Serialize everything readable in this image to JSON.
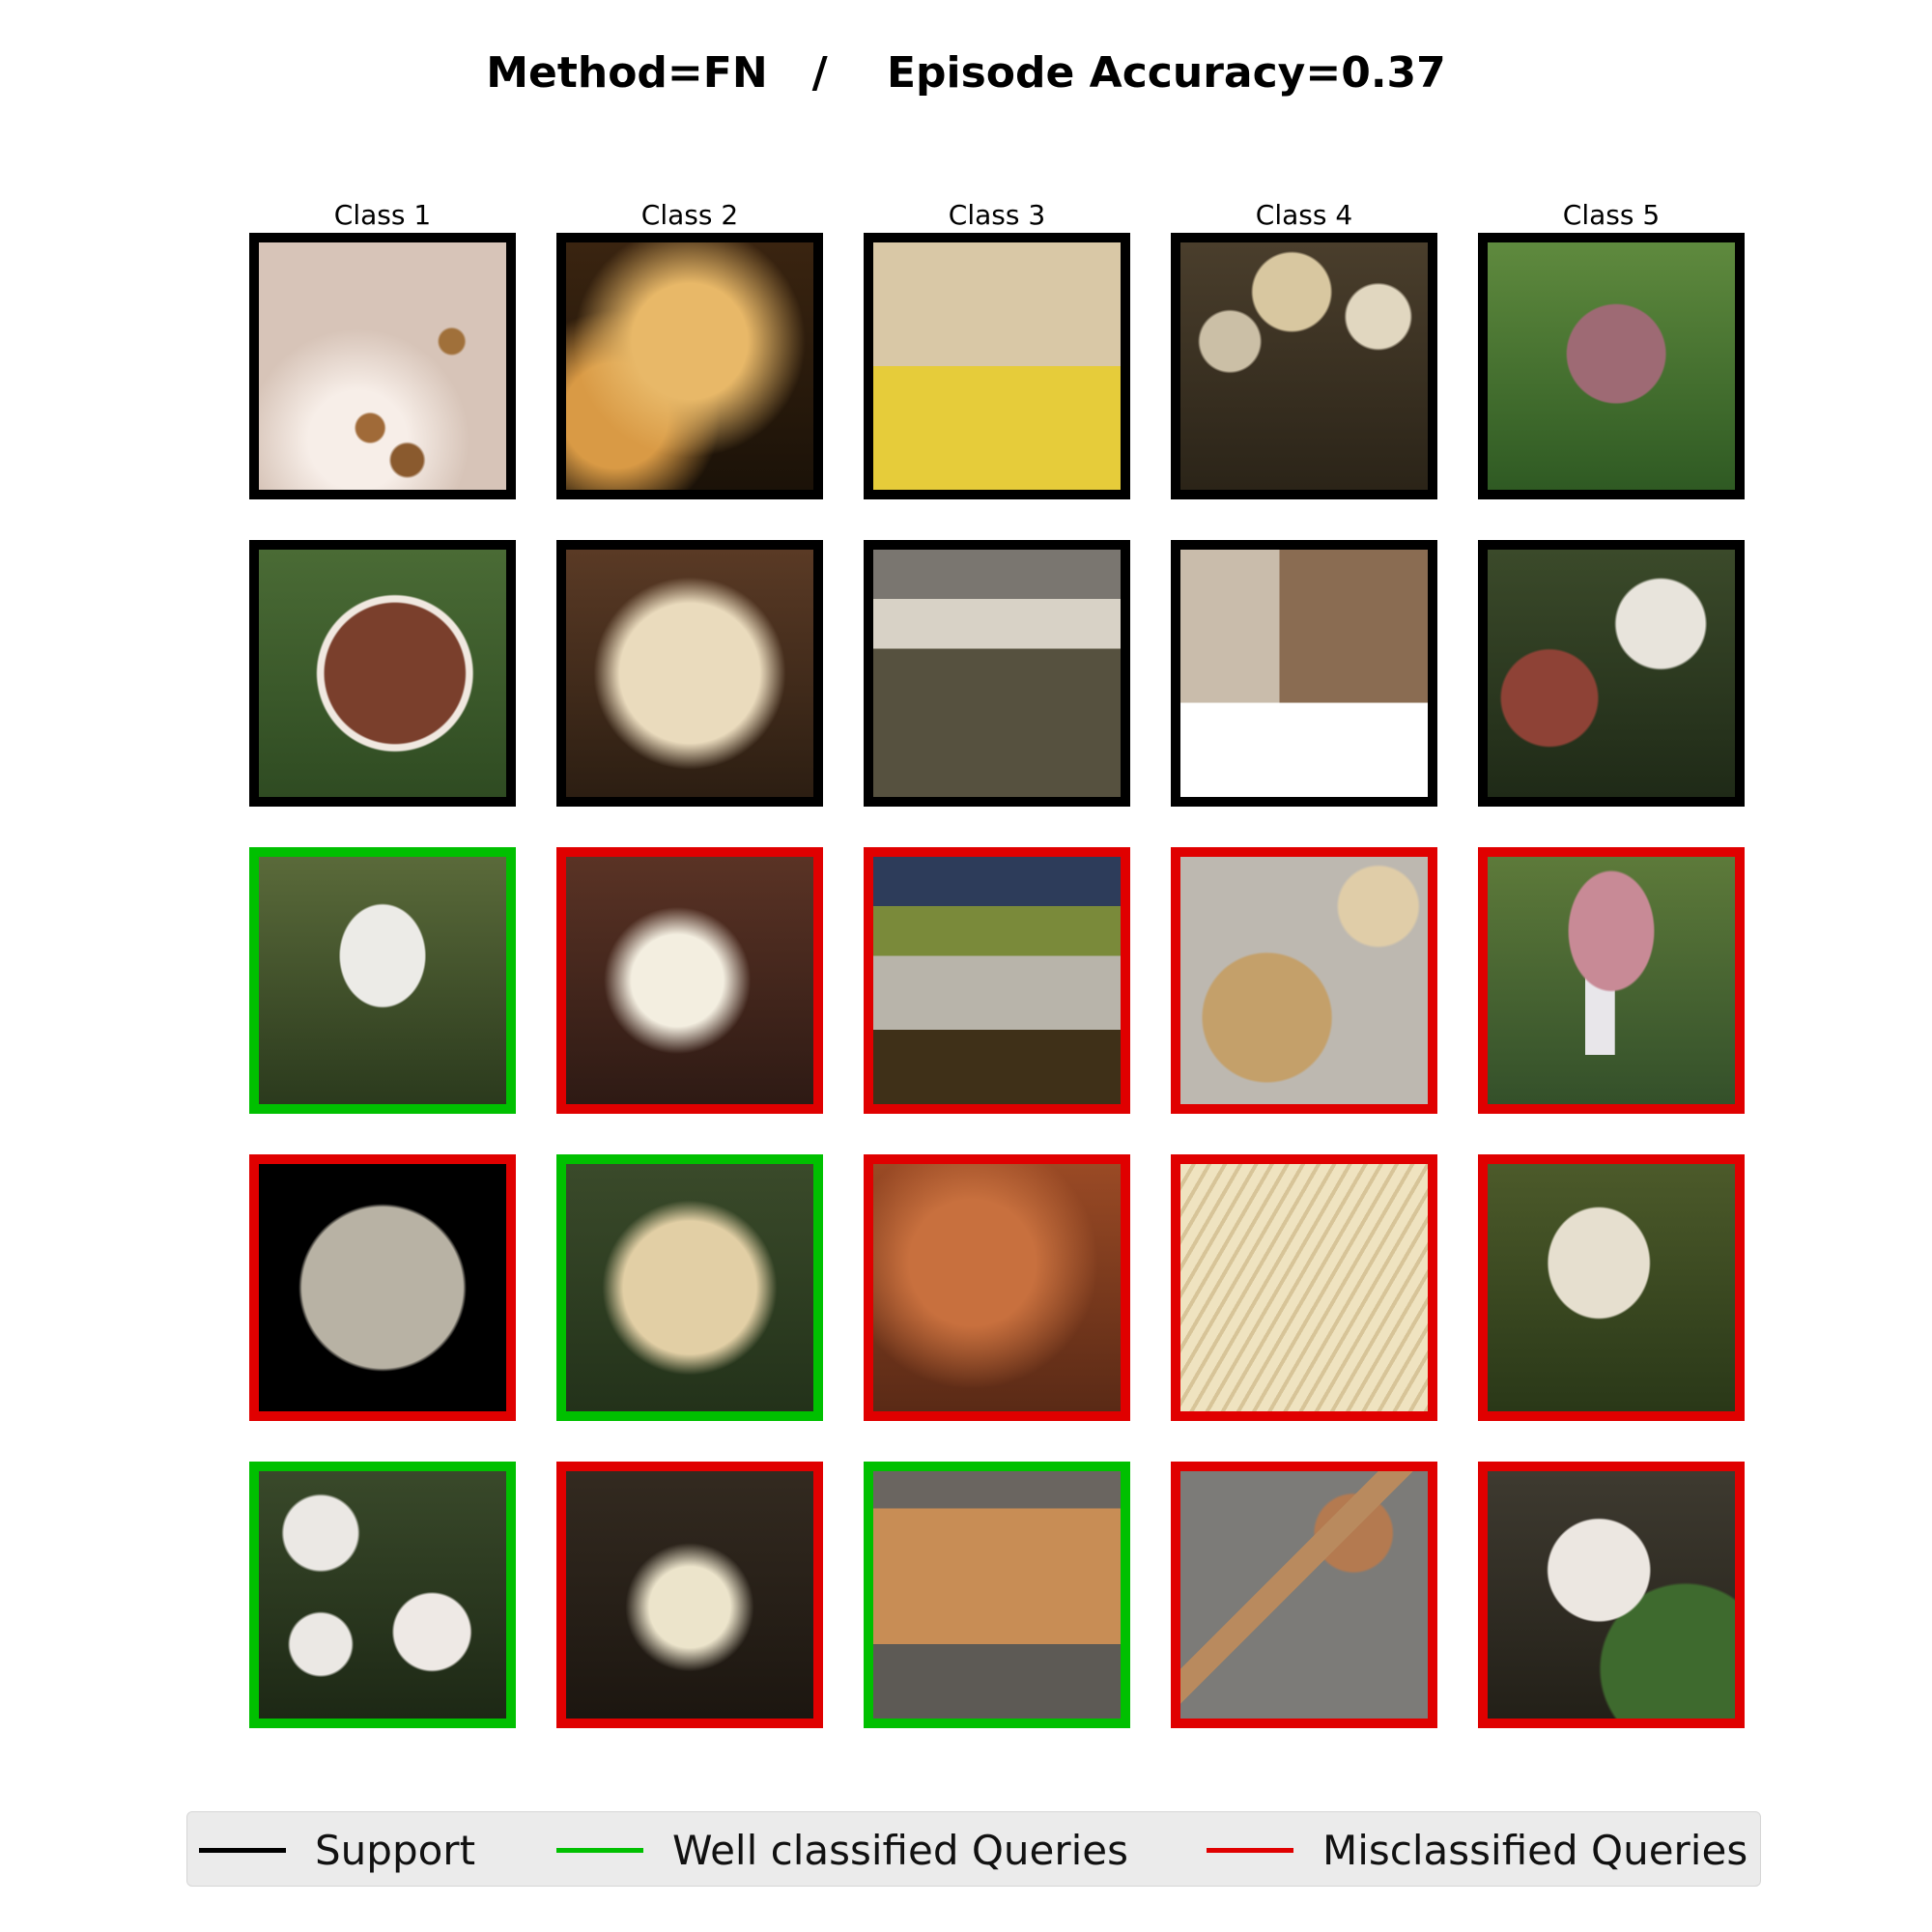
{
  "title": "Method=FN   /    Episode Accuracy=0.37",
  "columns": [
    "Class 1",
    "Class 2",
    "Class 3",
    "Class 4",
    "Class 5"
  ],
  "colors": {
    "support": "#000000",
    "well_classified": "#00c000",
    "misclassified": "#e00000"
  },
  "grid": [
    [
      "support",
      "support",
      "support",
      "support",
      "support"
    ],
    [
      "support",
      "support",
      "support",
      "support",
      "support"
    ],
    [
      "well_classified",
      "misclassified",
      "misclassified",
      "misclassified",
      "misclassified"
    ],
    [
      "misclassified",
      "well_classified",
      "misclassified",
      "misclassified",
      "misclassified"
    ],
    [
      "well_classified",
      "misclassified",
      "well_classified",
      "misclassified",
      "misclassified"
    ]
  ],
  "images": [
    [
      "microscope-spores",
      "orange-coral-fungus",
      "bracket-fungus-with-ruler",
      "group-of-mushrooms",
      "red-cap-mushroom"
    ],
    [
      "brown-gills-mushroom",
      "cream-coral-fungus",
      "shelf-fungus-in-grass",
      "mushroom-collage",
      "red-caps-white-stems"
    ],
    [
      "white-cap-mushroom",
      "white-coral-fungus",
      "bracket-fungus-on-log",
      "tan-gills-mushroom",
      "pink-cap-mushroom"
    ],
    [
      "microscope-spores-dark",
      "cream-coral-fungus-moss",
      "orange-crust-fungus",
      "gills-closeup",
      "white-mushroom-moss"
    ],
    [
      "white-button-mushrooms",
      "white-coral-fungus-ground",
      "orange-crust-on-log",
      "mushroom-on-pavement",
      "white-mushroom-leaves"
    ]
  ],
  "legend": [
    {
      "label": "Support",
      "key": "support"
    },
    {
      "label": "Well classified Queries",
      "key": "well_classified"
    },
    {
      "label": "Misclassified Queries",
      "key": "misclassified"
    }
  ]
}
